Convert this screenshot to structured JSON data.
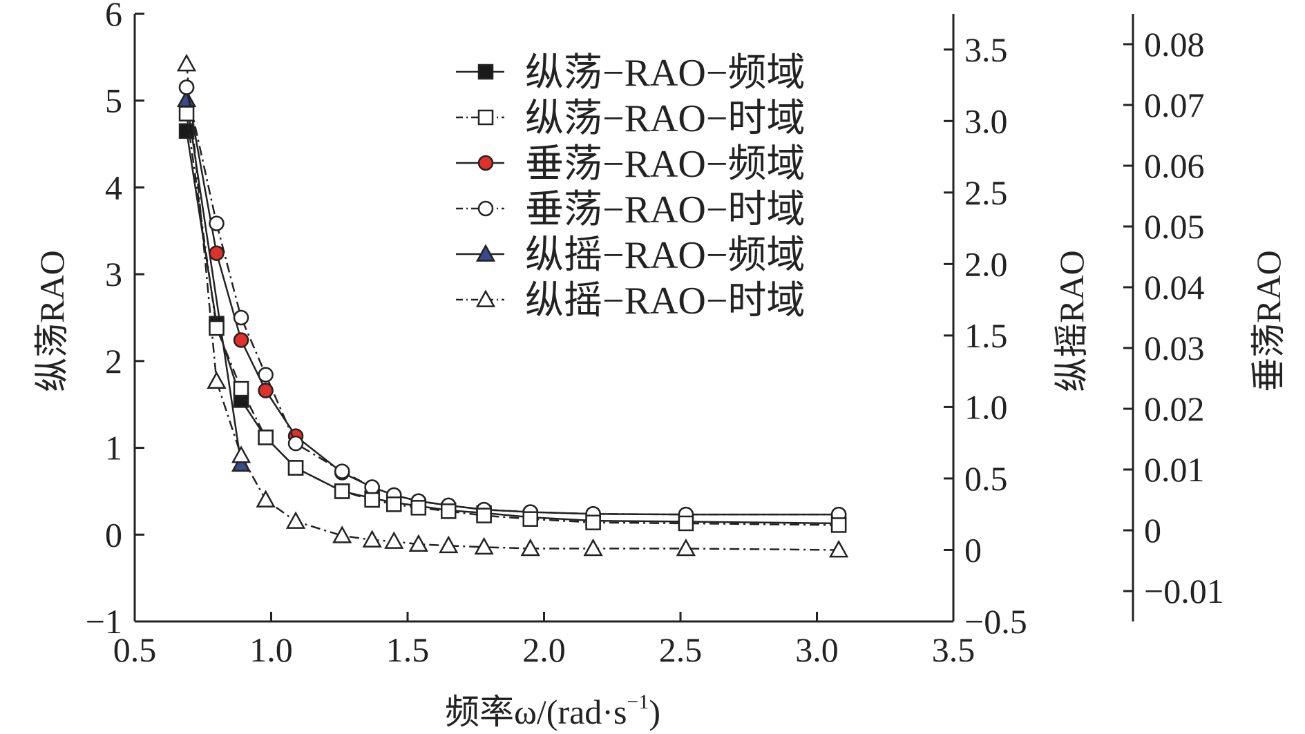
{
  "chart_data": {
    "type": "line",
    "xlabel_main": "频率ω/(rad·s",
    "xlabel_sup": "−1",
    "xlabel_tail": ")",
    "ylabel_left": "纵荡RAO",
    "ylabel_right1": "纵摇RAO",
    "ylabel_right2": "垂荡RAO",
    "xlim": [
      0.5,
      3.5
    ],
    "ylim_left": [
      -1,
      6
    ],
    "ylim_right1": [
      -0.5,
      3.75
    ],
    "ylim_right2": [
      -0.015,
      0.085
    ],
    "x_ticks": [
      "0.5",
      "1.0",
      "1.5",
      "2.0",
      "2.5",
      "3.0",
      "3.5"
    ],
    "y_left_ticks": [
      "−1",
      "0",
      "1",
      "2",
      "3",
      "4",
      "5",
      "6"
    ],
    "y_right1_ticks": [
      "−0.5",
      "0",
      "0.5",
      "1.0",
      "1.5",
      "2.0",
      "2.5",
      "3.0",
      "3.5"
    ],
    "y_right2_ticks": [
      "−0.01",
      "0",
      "0.01",
      "0.02",
      "0.03",
      "0.04",
      "0.05",
      "0.06",
      "0.07",
      "0.08"
    ],
    "legend_position": "top-right",
    "colors": {
      "axis": "#222222",
      "red_fill": "#e0302a",
      "blue_fill": "#3a4a8c",
      "black_fill": "#1a1a1a"
    },
    "series": [
      {
        "name": "纵荡−RAO−频域",
        "axis": "left",
        "marker": "square-filled",
        "line": "solid",
        "x": [
          0.69,
          0.8,
          0.89,
          0.98,
          1.09,
          1.26,
          1.37,
          1.45,
          1.54,
          1.65,
          1.78,
          1.95,
          2.18,
          2.52,
          3.08
        ],
        "y": [
          4.65,
          2.43,
          1.55,
          1.12,
          0.77,
          0.5,
          0.42,
          0.37,
          0.33,
          0.28,
          0.25,
          0.2,
          0.16,
          0.15,
          0.13
        ]
      },
      {
        "name": "纵荡−RAO−时域",
        "axis": "left",
        "marker": "square-open",
        "line": "dashdot",
        "x": [
          0.69,
          0.8,
          0.89,
          0.98,
          1.09,
          1.26,
          1.37,
          1.45,
          1.54,
          1.65,
          1.78,
          1.95,
          2.18,
          2.52,
          3.08
        ],
        "y": [
          4.85,
          2.38,
          1.68,
          1.12,
          0.77,
          0.5,
          0.4,
          0.35,
          0.31,
          0.27,
          0.22,
          0.18,
          0.14,
          0.13,
          0.11
        ]
      },
      {
        "name": "垂荡−RAO−频域",
        "axis": "right2",
        "marker": "circle-red",
        "line": "solid",
        "x": [
          0.69,
          0.8,
          0.89,
          0.98,
          1.09,
          1.26,
          1.37,
          1.45,
          1.54,
          1.65,
          1.78,
          1.95,
          2.18,
          2.52,
          3.08
        ],
        "y": [
          0.0729,
          0.0456,
          0.0313,
          0.023,
          0.0155,
          0.0095,
          0.0071,
          0.0058,
          0.0048,
          0.0041,
          0.0034,
          0.003,
          0.0027,
          0.0026,
          0.0026
        ]
      },
      {
        "name": "垂荡−RAO−时域",
        "axis": "right2",
        "marker": "circle-open",
        "line": "dashdot",
        "x": [
          0.69,
          0.8,
          0.89,
          0.98,
          1.09,
          1.26,
          1.37,
          1.45,
          1.54,
          1.65,
          1.78,
          1.95,
          2.18,
          2.52,
          3.08
        ],
        "y": [
          0.0729,
          0.0505,
          0.035,
          0.0256,
          0.0143,
          0.0097,
          0.0071,
          0.0058,
          0.0048,
          0.0041,
          0.0034,
          0.003,
          0.0027,
          0.0026,
          0.0026
        ]
      },
      {
        "name": "纵摇−RAO−频域",
        "axis": "right1",
        "marker": "triangle-blue",
        "line": "solid",
        "x": [
          0.69,
          0.89
        ],
        "y": [
          3.15,
          0.6
        ]
      },
      {
        "name": "纵摇−RAO−时域",
        "axis": "right1",
        "marker": "triangle-open",
        "line": "dashdot",
        "x": [
          0.69,
          0.8,
          0.89,
          0.98,
          1.09,
          1.26,
          1.37,
          1.45,
          1.54,
          1.65,
          1.78,
          1.95,
          2.18,
          2.52,
          3.08
        ],
        "y": [
          3.4,
          1.18,
          0.66,
          0.35,
          0.2,
          0.1,
          0.07,
          0.06,
          0.04,
          0.03,
          0.02,
          0.01,
          0.01,
          0.01,
          0.0
        ]
      }
    ]
  }
}
